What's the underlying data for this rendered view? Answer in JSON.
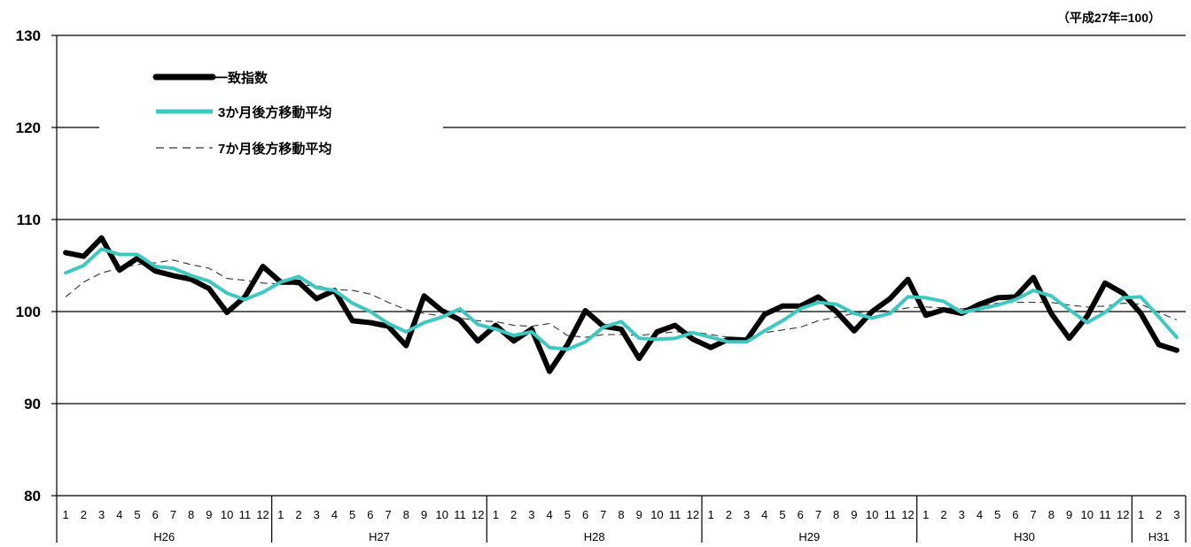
{
  "unit_note": "（平成27年=100）",
  "chart_data": {
    "type": "line",
    "title": "",
    "xlabel": "",
    "ylabel": "",
    "ylim": [
      80,
      130
    ],
    "yticks": [
      80,
      90,
      100,
      110,
      120,
      130
    ],
    "grid": true,
    "legend_position": "top-left",
    "year_groups": [
      {
        "label": "H26",
        "months": [
          "1",
          "2",
          "3",
          "4",
          "5",
          "6",
          "7",
          "8",
          "9",
          "10",
          "11",
          "12"
        ]
      },
      {
        "label": "H27",
        "months": [
          "1",
          "2",
          "3",
          "4",
          "5",
          "6",
          "7",
          "8",
          "9",
          "10",
          "11",
          "12"
        ]
      },
      {
        "label": "H28",
        "months": [
          "1",
          "2",
          "3",
          "4",
          "5",
          "6",
          "7",
          "8",
          "9",
          "10",
          "11",
          "12"
        ]
      },
      {
        "label": "H29",
        "months": [
          "1",
          "2",
          "3",
          "4",
          "5",
          "6",
          "7",
          "8",
          "9",
          "10",
          "11",
          "12"
        ]
      },
      {
        "label": "H30",
        "months": [
          "1",
          "2",
          "3",
          "4",
          "5",
          "6",
          "7",
          "8",
          "9",
          "10",
          "11",
          "12"
        ]
      },
      {
        "label": "H31",
        "months": [
          "1",
          "2",
          "3"
        ]
      }
    ],
    "series": [
      {
        "name": "一致指数",
        "color": "#000000",
        "style": "solid-thick",
        "values": [
          106.4,
          106.0,
          108.0,
          104.5,
          105.8,
          104.4,
          103.9,
          103.5,
          102.5,
          99.9,
          101.6,
          104.9,
          103.2,
          103.2,
          101.4,
          102.3,
          99.0,
          98.8,
          98.4,
          96.3,
          101.7,
          100.1,
          99.1,
          96.8,
          98.5,
          96.8,
          98.1,
          93.5,
          96.4,
          100.1,
          98.4,
          98.1,
          94.9,
          97.8,
          98.5,
          97.0,
          96.1,
          97.0,
          96.9,
          99.7,
          100.6,
          100.6,
          101.6,
          100.0,
          97.9,
          100.0,
          101.4,
          103.5,
          99.6,
          100.2,
          99.8,
          100.8,
          101.5,
          101.6,
          103.7,
          99.8,
          97.1,
          99.5,
          103.1,
          102.0,
          99.8,
          96.4,
          95.8
        ]
      },
      {
        "name": "3か月後方移動平均",
        "color": "#40c8c0",
        "style": "solid",
        "values": [
          104.2,
          105.0,
          106.8,
          106.2,
          106.2,
          104.9,
          104.7,
          103.9,
          103.3,
          102.0,
          101.3,
          102.1,
          103.2,
          103.8,
          102.6,
          102.3,
          100.9,
          100.0,
          98.7,
          97.8,
          98.8,
          99.4,
          100.3,
          98.6,
          98.1,
          97.4,
          97.8,
          96.1,
          95.9,
          96.7,
          98.3,
          98.9,
          97.1,
          97.0,
          97.1,
          97.7,
          97.2,
          96.7,
          96.7,
          97.9,
          99.0,
          100.3,
          101.0,
          100.8,
          99.8,
          99.3,
          99.8,
          101.6,
          101.5,
          101.1,
          99.9,
          100.3,
          100.7,
          101.3,
          102.3,
          101.7,
          100.2,
          98.8,
          99.9,
          101.5,
          101.6,
          99.4,
          97.2
        ]
      },
      {
        "name": "7か月後方移動平均",
        "color": "#333333",
        "style": "dashed",
        "values": [
          101.6,
          103.2,
          104.2,
          104.7,
          105.1,
          105.3,
          105.6,
          105.1,
          104.7,
          103.6,
          103.4,
          103.1,
          103.0,
          102.9,
          102.8,
          102.4,
          102.3,
          101.9,
          101.0,
          100.2,
          99.8,
          99.5,
          99.3,
          99.0,
          98.9,
          98.5,
          98.4,
          98.7,
          97.4,
          97.2,
          97.5,
          97.5,
          97.4,
          97.6,
          97.8,
          97.8,
          97.5,
          97.2,
          96.9,
          97.7,
          98.0,
          98.3,
          99.0,
          99.4,
          99.8,
          100.1,
          100.1,
          100.4,
          100.5,
          100.4,
          100.3,
          100.6,
          100.9,
          101.0,
          101.0,
          101.0,
          100.7,
          100.5,
          100.6,
          100.9,
          100.8,
          99.9,
          99.1
        ]
      }
    ]
  }
}
